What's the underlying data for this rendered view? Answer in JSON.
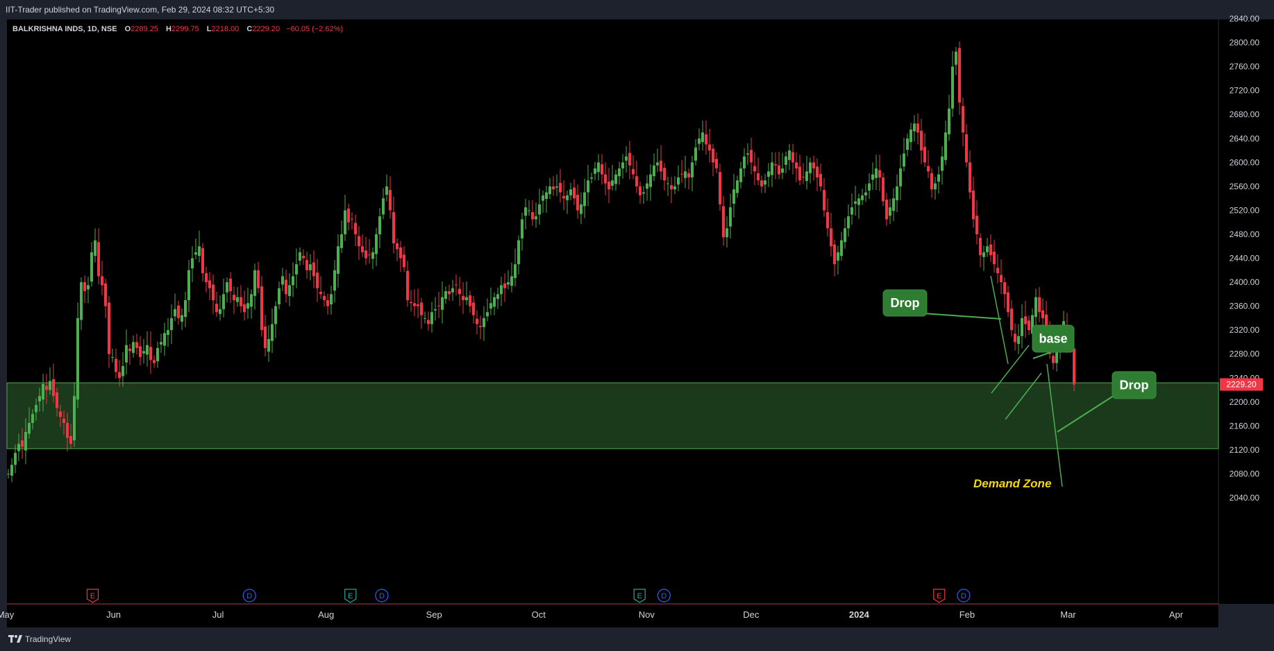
{
  "header": {
    "published": "IIT-Trader published on TradingView.com, Feb 29, 2024 08:32 UTC+5:30"
  },
  "legend": {
    "symbol": "BALKRISHNA INDS, 1D, NSE",
    "o_label": "O",
    "o_value": "2289.25",
    "h_label": "H",
    "h_value": "2299.75",
    "l_label": "L",
    "l_value": "2218.00",
    "c_label": "C",
    "c_value": "2229.20",
    "change": "−60.05 (−2.62%)"
  },
  "footer": {
    "brand": "TradingView",
    "logo_icon": "tradingview-logo-icon"
  },
  "colors": {
    "background": "#000000",
    "up": "#4caf50",
    "down": "#f23645",
    "zone_fill": "#1b3a1b",
    "zone_border": "#4caf50",
    "annotation_box": "#2e7d32",
    "annotation_text": "#ffffff",
    "zone_label": "#f5d90a",
    "price_tag": "#f23645"
  },
  "price_tag": "2229.20",
  "annotations": {
    "drop1": "Drop",
    "base": "base",
    "drop2": "Drop",
    "zone": "Demand Zone"
  },
  "event_markers": [
    {
      "date": "2023-05-26",
      "label": "E",
      "color": "#f23645"
    },
    {
      "date": "2023-07-10",
      "label": "D",
      "color": "#2962ff"
    },
    {
      "date": "2023-08-08",
      "label": "E",
      "color": "#26a69a"
    },
    {
      "date": "2023-08-17",
      "label": "D",
      "color": "#2962ff"
    },
    {
      "date": "2023-10-30",
      "label": "E",
      "color": "#26a69a"
    },
    {
      "date": "2023-11-06",
      "label": "D",
      "color": "#2962ff"
    },
    {
      "date": "2024-01-24",
      "label": "E",
      "color": "#f23645"
    },
    {
      "date": "2024-01-31",
      "label": "D",
      "color": "#2962ff"
    }
  ],
  "chart_data": {
    "type": "candlestick",
    "x_axis": {
      "type": "date",
      "ticks": [
        "May",
        "Jun",
        "Jul",
        "Aug",
        "Sep",
        "Oct",
        "Nov",
        "Dec",
        "2024",
        "Feb",
        "Mar",
        "Apr"
      ],
      "range": [
        "2023-05-01",
        "2024-04-20"
      ]
    },
    "y_axis": {
      "side": "right",
      "range": [
        2000,
        2860
      ],
      "ticks": [
        2040,
        2080,
        2120,
        2160,
        2200,
        2240,
        2280,
        2320,
        2360,
        2400,
        2440,
        2480,
        2520,
        2560,
        2600,
        2640,
        2680,
        2720,
        2760,
        2800,
        2840
      ]
    },
    "grid": false,
    "demand_zone": {
      "low": 2122,
      "high": 2232,
      "label": "Demand Zone"
    },
    "last_close": 2229.2,
    "series": [
      {
        "name": "BALKRISHNA INDS",
        "close": [
          2080,
          2095,
          2115,
          2130,
          2125,
          2150,
          2165,
          2180,
          2195,
          2210,
          2230,
          2220,
          2235,
          2210,
          2190,
          2175,
          2165,
          2140,
          2130,
          2210,
          2340,
          2400,
          2385,
          2395,
          2450,
          2470,
          2410,
          2395,
          2360,
          2280,
          2275,
          2250,
          2240,
          2260,
          2295,
          2285,
          2300,
          2290,
          2275,
          2285,
          2295,
          2270,
          2265,
          2290,
          2300,
          2315,
          2320,
          2340,
          2355,
          2340,
          2345,
          2370,
          2420,
          2440,
          2450,
          2460,
          2415,
          2400,
          2390,
          2370,
          2350,
          2355,
          2380,
          2400,
          2385,
          2370,
          2375,
          2360,
          2350,
          2365,
          2380,
          2420,
          2390,
          2320,
          2290,
          2305,
          2330,
          2360,
          2390,
          2410,
          2380,
          2395,
          2410,
          2430,
          2450,
          2440,
          2420,
          2430,
          2410,
          2390,
          2380,
          2370,
          2360,
          2380,
          2420,
          2460,
          2480,
          2520,
          2500,
          2505,
          2480,
          2460,
          2450,
          2440,
          2445,
          2450,
          2480,
          2510,
          2540,
          2560,
          2520,
          2465,
          2455,
          2440,
          2425,
          2370,
          2365,
          2360,
          2360,
          2345,
          2340,
          2330,
          2350,
          2355,
          2360,
          2375,
          2385,
          2380,
          2390,
          2395,
          2380,
          2370,
          2375,
          2360,
          2345,
          2330,
          2325,
          2340,
          2350,
          2365,
          2375,
          2380,
          2395,
          2390,
          2400,
          2410,
          2430,
          2470,
          2505,
          2525,
          2520,
          2505,
          2510,
          2530,
          2545,
          2550,
          2560,
          2555,
          2560,
          2550,
          2540,
          2545,
          2555,
          2540,
          2520,
          2530,
          2550,
          2570,
          2575,
          2590,
          2600,
          2580,
          2565,
          2555,
          2570,
          2580,
          2590,
          2600,
          2610,
          2595,
          2580,
          2560,
          2545,
          2550,
          2565,
          2580,
          2595,
          2600,
          2585,
          2570,
          2565,
          2555,
          2560,
          2575,
          2580,
          2585,
          2575,
          2600,
          2625,
          2640,
          2650,
          2630,
          2620,
          2600,
          2590,
          2530,
          2475,
          2490,
          2525,
          2555,
          2570,
          2590,
          2610,
          2615,
          2600,
          2585,
          2570,
          2560,
          2570,
          2585,
          2600,
          2595,
          2580,
          2590,
          2610,
          2620,
          2600,
          2590,
          2570,
          2575,
          2585,
          2600,
          2590,
          2575,
          2560,
          2520,
          2490,
          2460,
          2430,
          2450,
          2470,
          2490,
          2510,
          2525,
          2535,
          2540,
          2545,
          2550,
          2565,
          2580,
          2590,
          2575,
          2535,
          2505,
          2525,
          2540,
          2560,
          2590,
          2615,
          2640,
          2655,
          2665,
          2650,
          2620,
          2600,
          2585,
          2555,
          2565,
          2580,
          2610,
          2650,
          2690,
          2760,
          2785,
          2700,
          2650,
          2600,
          2550,
          2505,
          2480,
          2445,
          2450,
          2460,
          2445,
          2430,
          2415,
          2400,
          2380,
          2350,
          2320,
          2300,
          2310,
          2340,
          2330,
          2320,
          2345,
          2375,
          2350,
          2340,
          2315,
          2280,
          2265,
          2285,
          2300,
          2335,
          2305,
          2290,
          2229.2
        ]
      }
    ]
  }
}
